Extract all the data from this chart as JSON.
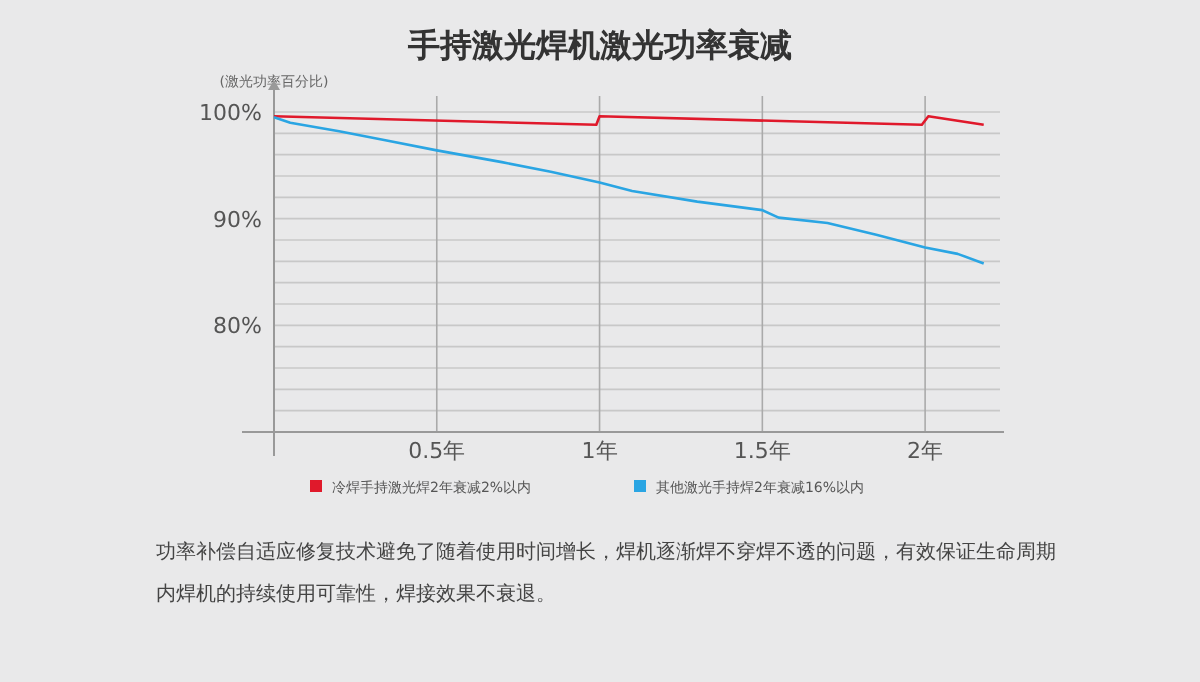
{
  "chart_data": {
    "type": "line",
    "title": "手持激光焊机激光功率衰减",
    "ylabel": "(激光功率百分比)",
    "xlim": [
      0,
      2.23
    ],
    "ylim": [
      70,
      101.5
    ],
    "xticks": [
      {
        "value": 0.5,
        "label": "0.5年"
      },
      {
        "value": 1,
        "label": "1年"
      },
      {
        "value": 1.5,
        "label": "1.5年"
      },
      {
        "value": 2,
        "label": "2年"
      }
    ],
    "yticks": [
      {
        "value": 72,
        "label": null
      },
      {
        "value": 74,
        "label": null
      },
      {
        "value": 76,
        "label": null
      },
      {
        "value": 78,
        "label": null
      },
      {
        "value": 80,
        "label": "80%"
      },
      {
        "value": 82,
        "label": null
      },
      {
        "value": 84,
        "label": null
      },
      {
        "value": 86,
        "label": null
      },
      {
        "value": 88,
        "label": null
      },
      {
        "value": 90,
        "label": "90%"
      },
      {
        "value": 92,
        "label": null
      },
      {
        "value": 94,
        "label": null
      },
      {
        "value": 96,
        "label": null
      },
      {
        "value": 98,
        "label": null
      },
      {
        "value": 100,
        "label": "100%"
      }
    ],
    "grid": true,
    "legend": "bottom",
    "series": [
      {
        "name": "冷焊手持激光焊2年衰减2%以内",
        "color": "#e0192b",
        "x": [
          0,
          0.99,
          1.0,
          1.99,
          2.01,
          2.18
        ],
        "values": [
          99.6,
          98.8,
          99.6,
          98.8,
          99.6,
          98.8
        ]
      },
      {
        "name": "其他激光手持焊2年衰减16%以内",
        "color": "#2aa5e3",
        "x": [
          0,
          0.05,
          0.2,
          0.35,
          0.5,
          0.7,
          0.85,
          1.0,
          1.1,
          1.3,
          1.5,
          1.55,
          1.7,
          1.85,
          2.0,
          2.1,
          2.18
        ],
        "values": [
          99.5,
          99.0,
          98.2,
          97.3,
          96.4,
          95.3,
          94.4,
          93.4,
          92.6,
          91.6,
          90.8,
          90.1,
          89.6,
          88.5,
          87.3,
          86.7,
          85.8
        ]
      }
    ],
    "annotations": [
      "功率补偿自适应修复技术避免了随着使用时间增长，焊机逐渐焊不穿焊不透的问题，有效保证生命周期内焊机的持续使用可靠性，焊接效果不衰退。"
    ]
  }
}
